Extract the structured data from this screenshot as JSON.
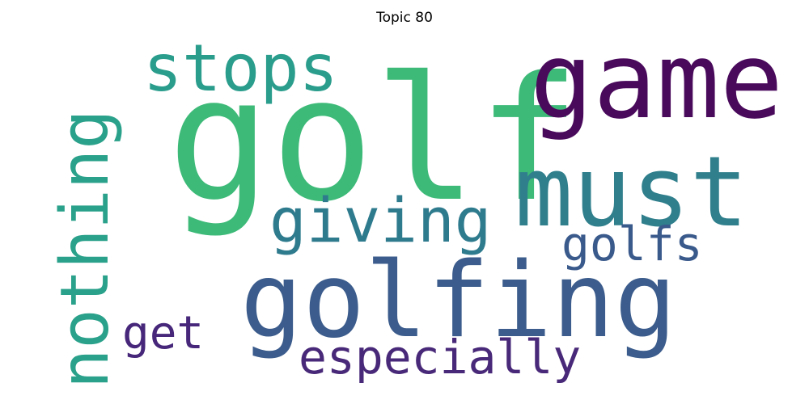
{
  "title": "Topic 80",
  "words": [
    {
      "text": "golf",
      "color": "#3dba78"
    },
    {
      "text": "game",
      "color": "#4a0a5c"
    },
    {
      "text": "golfing",
      "color": "#3b5c8c"
    },
    {
      "text": "must",
      "color": "#2f7f8c"
    },
    {
      "text": "nothing",
      "color": "#2aa18a"
    },
    {
      "text": "stops",
      "color": "#2a9d8c"
    },
    {
      "text": "giving",
      "color": "#2f7b8e"
    },
    {
      "text": "golfs",
      "color": "#3a5a8c"
    },
    {
      "text": "especially",
      "color": "#482878"
    },
    {
      "text": "get",
      "color": "#46277a"
    }
  ]
}
